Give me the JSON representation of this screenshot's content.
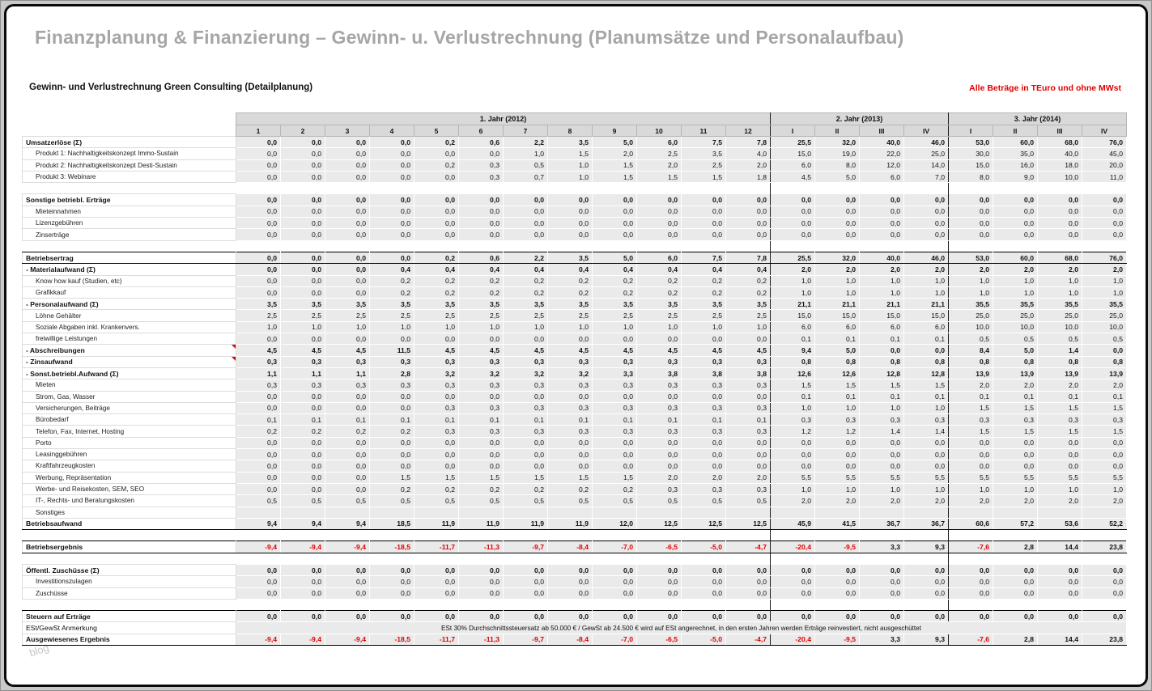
{
  "page": {
    "title": "Finanzplanung & Finanzierung – Gewinn- u. Verlustrechnung (Planumsätze und Personalaufbau)",
    "subtitle": "Gewinn- und Verlustrechnung Green Consulting (Detailplanung)",
    "note_right": "Alle Beträge in TEuro und ohne MWst",
    "watermark": "blog"
  },
  "colors": {
    "negative_red": "#e00000",
    "title_gray": "#a6a6a6",
    "header_bg": "#d9d9d9",
    "cell_bg": "#eaeaea",
    "frame_border": "#0a0a0a"
  },
  "table": {
    "year_groups": [
      {
        "label": "1. Jahr (2012)",
        "cols": [
          "1",
          "2",
          "3",
          "4",
          "5",
          "6",
          "7",
          "8",
          "9",
          "10",
          "11",
          "12"
        ]
      },
      {
        "label": "2. Jahr (2013)",
        "cols": [
          "I",
          "II",
          "III",
          "IV"
        ]
      },
      {
        "label": "3. Jahr (2014)",
        "cols": [
          "I",
          "II",
          "III",
          "IV"
        ]
      }
    ],
    "rows": [
      {
        "label": "Umsatzerlöse (Σ)",
        "bold": true,
        "values": [
          "0,0",
          "0,0",
          "0,0",
          "0,0",
          "0,2",
          "0,6",
          "2,2",
          "3,5",
          "5,0",
          "6,0",
          "7,5",
          "7,8",
          "25,5",
          "32,0",
          "40,0",
          "46,0",
          "53,0",
          "60,0",
          "68,0",
          "76,0"
        ]
      },
      {
        "label": "Produkt 1: Nachhaltigkeitskonzept Immo-Sustain",
        "indent": true,
        "values": [
          "0,0",
          "0,0",
          "0,0",
          "0,0",
          "0,0",
          "0,0",
          "1,0",
          "1,5",
          "2,0",
          "2,5",
          "3,5",
          "4,0",
          "15,0",
          "19,0",
          "22,0",
          "25,0",
          "30,0",
          "35,0",
          "40,0",
          "45,0"
        ]
      },
      {
        "label": "Produkt 2: Nachhaltigkeitskonzept Desti-Sustain",
        "indent": true,
        "values": [
          "0,0",
          "0,0",
          "0,0",
          "0,0",
          "0,2",
          "0,3",
          "0,5",
          "1,0",
          "1,5",
          "2,0",
          "2,5",
          "2,0",
          "6,0",
          "8,0",
          "12,0",
          "14,0",
          "15,0",
          "16,0",
          "18,0",
          "20,0"
        ]
      },
      {
        "label": "Produkt 3: Webinare",
        "indent": true,
        "values": [
          "0,0",
          "0,0",
          "0,0",
          "0,0",
          "0,0",
          "0,3",
          "0,7",
          "1,0",
          "1,5",
          "1,5",
          "1,5",
          "1,8",
          "4,5",
          "5,0",
          "6,0",
          "7,0",
          "8,0",
          "9,0",
          "10,0",
          "11,0"
        ]
      },
      {
        "type": "spacer"
      },
      {
        "label": "Sonstige betriebl. Erträge",
        "bold": true,
        "values": [
          "0,0",
          "0,0",
          "0,0",
          "0,0",
          "0,0",
          "0,0",
          "0,0",
          "0,0",
          "0,0",
          "0,0",
          "0,0",
          "0,0",
          "0,0",
          "0,0",
          "0,0",
          "0,0",
          "0,0",
          "0,0",
          "0,0",
          "0,0"
        ]
      },
      {
        "label": "Mieteinnahmen",
        "indent": true,
        "values": [
          "0,0",
          "0,0",
          "0,0",
          "0,0",
          "0,0",
          "0,0",
          "0,0",
          "0,0",
          "0,0",
          "0,0",
          "0,0",
          "0,0",
          "0,0",
          "0,0",
          "0,0",
          "0,0",
          "0,0",
          "0,0",
          "0,0",
          "0,0"
        ]
      },
      {
        "label": "Lizenzgebühren",
        "indent": true,
        "values": [
          "0,0",
          "0,0",
          "0,0",
          "0,0",
          "0,0",
          "0,0",
          "0,0",
          "0,0",
          "0,0",
          "0,0",
          "0,0",
          "0,0",
          "0,0",
          "0,0",
          "0,0",
          "0,0",
          "0,0",
          "0,0",
          "0,0",
          "0,0"
        ]
      },
      {
        "label": "Zinserträge",
        "indent": true,
        "values": [
          "0,0",
          "0,0",
          "0,0",
          "0,0",
          "0,0",
          "0,0",
          "0,0",
          "0,0",
          "0,0",
          "0,0",
          "0,0",
          "0,0",
          "0,0",
          "0,0",
          "0,0",
          "0,0",
          "0,0",
          "0,0",
          "0,0",
          "0,0"
        ]
      },
      {
        "type": "spacer"
      },
      {
        "label": "Betriebsertrag",
        "bold": true,
        "bt": true,
        "bb": true,
        "values": [
          "0,0",
          "0,0",
          "0,0",
          "0,0",
          "0,2",
          "0,6",
          "2,2",
          "3,5",
          "5,0",
          "6,0",
          "7,5",
          "7,8",
          "25,5",
          "32,0",
          "40,0",
          "46,0",
          "53,0",
          "60,0",
          "68,0",
          "76,0"
        ]
      },
      {
        "label": "- Materialaufwand (Σ)",
        "bold": true,
        "values": [
          "0,0",
          "0,0",
          "0,0",
          "0,4",
          "0,4",
          "0,4",
          "0,4",
          "0,4",
          "0,4",
          "0,4",
          "0,4",
          "0,4",
          "2,0",
          "2,0",
          "2,0",
          "2,0",
          "2,0",
          "2,0",
          "2,0",
          "2,0"
        ]
      },
      {
        "label": "Know how kauf (Studien, etc)",
        "indent": true,
        "values": [
          "0,0",
          "0,0",
          "0,0",
          "0,2",
          "0,2",
          "0,2",
          "0,2",
          "0,2",
          "0,2",
          "0,2",
          "0,2",
          "0,2",
          "1,0",
          "1,0",
          "1,0",
          "1,0",
          "1,0",
          "1,0",
          "1,0",
          "1,0"
        ]
      },
      {
        "label": "Grafikkauf",
        "indent": true,
        "values": [
          "0,0",
          "0,0",
          "0,0",
          "0,2",
          "0,2",
          "0,2",
          "0,2",
          "0,2",
          "0,2",
          "0,2",
          "0,2",
          "0,2",
          "1,0",
          "1,0",
          "1,0",
          "1,0",
          "1,0",
          "1,0",
          "1,0",
          "1,0"
        ]
      },
      {
        "label": "- Personalaufwand (Σ)",
        "bold": true,
        "values": [
          "3,5",
          "3,5",
          "3,5",
          "3,5",
          "3,5",
          "3,5",
          "3,5",
          "3,5",
          "3,5",
          "3,5",
          "3,5",
          "3,5",
          "21,1",
          "21,1",
          "21,1",
          "21,1",
          "35,5",
          "35,5",
          "35,5",
          "35,5"
        ]
      },
      {
        "label": "Löhne Gehälter",
        "indent": true,
        "values": [
          "2,5",
          "2,5",
          "2,5",
          "2,5",
          "2,5",
          "2,5",
          "2,5",
          "2,5",
          "2,5",
          "2,5",
          "2,5",
          "2,5",
          "15,0",
          "15,0",
          "15,0",
          "15,0",
          "25,0",
          "25,0",
          "25,0",
          "25,0"
        ]
      },
      {
        "label": "Soziale Abgaben inkl. Krankenvers.",
        "indent": true,
        "values": [
          "1,0",
          "1,0",
          "1,0",
          "1,0",
          "1,0",
          "1,0",
          "1,0",
          "1,0",
          "1,0",
          "1,0",
          "1,0",
          "1,0",
          "6,0",
          "6,0",
          "6,0",
          "6,0",
          "10,0",
          "10,0",
          "10,0",
          "10,0"
        ]
      },
      {
        "label": "freiwillige Leistungen",
        "indent": true,
        "values": [
          "0,0",
          "0,0",
          "0,0",
          "0,0",
          "0,0",
          "0,0",
          "0,0",
          "0,0",
          "0,0",
          "0,0",
          "0,0",
          "0,0",
          "0,1",
          "0,1",
          "0,1",
          "0,1",
          "0,5",
          "0,5",
          "0,5",
          "0,5"
        ]
      },
      {
        "label": "- Abschreibungen",
        "bold": true,
        "marker": true,
        "values": [
          "4,5",
          "4,5",
          "4,5",
          "11,5",
          "4,5",
          "4,5",
          "4,5",
          "4,5",
          "4,5",
          "4,5",
          "4,5",
          "4,5",
          "9,4",
          "5,0",
          "0,0",
          "0,0",
          "8,4",
          "5,0",
          "1,4",
          "0,0"
        ]
      },
      {
        "label": "- Zinsaufwand",
        "bold": true,
        "marker": true,
        "values": [
          "0,3",
          "0,3",
          "0,3",
          "0,3",
          "0,3",
          "0,3",
          "0,3",
          "0,3",
          "0,3",
          "0,3",
          "0,3",
          "0,3",
          "0,8",
          "0,8",
          "0,8",
          "0,8",
          "0,8",
          "0,8",
          "0,8",
          "0,8"
        ]
      },
      {
        "label": "- Sonst.betriebl.Aufwand (Σ)",
        "bold": true,
        "values": [
          "1,1",
          "1,1",
          "1,1",
          "2,8",
          "3,2",
          "3,2",
          "3,2",
          "3,2",
          "3,3",
          "3,8",
          "3,8",
          "3,8",
          "12,6",
          "12,6",
          "12,8",
          "12,8",
          "13,9",
          "13,9",
          "13,9",
          "13,9"
        ]
      },
      {
        "label": "Mieten",
        "indent": true,
        "values": [
          "0,3",
          "0,3",
          "0,3",
          "0,3",
          "0,3",
          "0,3",
          "0,3",
          "0,3",
          "0,3",
          "0,3",
          "0,3",
          "0,3",
          "1,5",
          "1,5",
          "1,5",
          "1,5",
          "2,0",
          "2,0",
          "2,0",
          "2,0"
        ]
      },
      {
        "label": "Strom, Gas, Wasser",
        "indent": true,
        "values": [
          "0,0",
          "0,0",
          "0,0",
          "0,0",
          "0,0",
          "0,0",
          "0,0",
          "0,0",
          "0,0",
          "0,0",
          "0,0",
          "0,0",
          "0,1",
          "0,1",
          "0,1",
          "0,1",
          "0,1",
          "0,1",
          "0,1",
          "0,1"
        ]
      },
      {
        "label": "Versicherungen, Beiträge",
        "indent": true,
        "values": [
          "0,0",
          "0,0",
          "0,0",
          "0,0",
          "0,3",
          "0,3",
          "0,3",
          "0,3",
          "0,3",
          "0,3",
          "0,3",
          "0,3",
          "1,0",
          "1,0",
          "1,0",
          "1,0",
          "1,5",
          "1,5",
          "1,5",
          "1,5"
        ]
      },
      {
        "label": "Bürobedarf",
        "indent": true,
        "values": [
          "0,1",
          "0,1",
          "0,1",
          "0,1",
          "0,1",
          "0,1",
          "0,1",
          "0,1",
          "0,1",
          "0,1",
          "0,1",
          "0,1",
          "0,3",
          "0,3",
          "0,3",
          "0,3",
          "0,3",
          "0,3",
          "0,3",
          "0,3"
        ]
      },
      {
        "label": "Telefon, Fax, Internet, Hosting",
        "indent": true,
        "values": [
          "0,2",
          "0,2",
          "0,2",
          "0,2",
          "0,3",
          "0,3",
          "0,3",
          "0,3",
          "0,3",
          "0,3",
          "0,3",
          "0,3",
          "1,2",
          "1,2",
          "1,4",
          "1,4",
          "1,5",
          "1,5",
          "1,5",
          "1,5"
        ]
      },
      {
        "label": "Porto",
        "indent": true,
        "values": [
          "0,0",
          "0,0",
          "0,0",
          "0,0",
          "0,0",
          "0,0",
          "0,0",
          "0,0",
          "0,0",
          "0,0",
          "0,0",
          "0,0",
          "0,0",
          "0,0",
          "0,0",
          "0,0",
          "0,0",
          "0,0",
          "0,0",
          "0,0"
        ]
      },
      {
        "label": "Leasinggebühren",
        "indent": true,
        "values": [
          "0,0",
          "0,0",
          "0,0",
          "0,0",
          "0,0",
          "0,0",
          "0,0",
          "0,0",
          "0,0",
          "0,0",
          "0,0",
          "0,0",
          "0,0",
          "0,0",
          "0,0",
          "0,0",
          "0,0",
          "0,0",
          "0,0",
          "0,0"
        ]
      },
      {
        "label": "Kraftfahrzeugkosten",
        "indent": true,
        "values": [
          "0,0",
          "0,0",
          "0,0",
          "0,0",
          "0,0",
          "0,0",
          "0,0",
          "0,0",
          "0,0",
          "0,0",
          "0,0",
          "0,0",
          "0,0",
          "0,0",
          "0,0",
          "0,0",
          "0,0",
          "0,0",
          "0,0",
          "0,0"
        ]
      },
      {
        "label": "Werbung, Repräsentation",
        "indent": true,
        "values": [
          "0,0",
          "0,0",
          "0,0",
          "1,5",
          "1,5",
          "1,5",
          "1,5",
          "1,5",
          "1,5",
          "2,0",
          "2,0",
          "2,0",
          "5,5",
          "5,5",
          "5,5",
          "5,5",
          "5,5",
          "5,5",
          "5,5",
          "5,5"
        ]
      },
      {
        "label": "Werbe- und Reisekosten, SEM, SEO",
        "indent": true,
        "values": [
          "0,0",
          "0,0",
          "0,0",
          "0,2",
          "0,2",
          "0,2",
          "0,2",
          "0,2",
          "0,2",
          "0,3",
          "0,3",
          "0,3",
          "1,0",
          "1,0",
          "1,0",
          "1,0",
          "1,0",
          "1,0",
          "1,0",
          "1,0"
        ]
      },
      {
        "label": "IT-, Rechts- und Beratungskosten",
        "indent": true,
        "values": [
          "0,5",
          "0,5",
          "0,5",
          "0,5",
          "0,5",
          "0,5",
          "0,5",
          "0,5",
          "0,5",
          "0,5",
          "0,5",
          "0,5",
          "2,0",
          "2,0",
          "2,0",
          "2,0",
          "2,0",
          "2,0",
          "2,0",
          "2,0"
        ]
      },
      {
        "label": "Sonstiges",
        "indent": true,
        "values": [
          "",
          "",
          "",
          "",
          "",
          "",
          "",
          "",
          "",
          "",
          "",
          "",
          "",
          "",
          "",
          "",
          "",
          "",
          "",
          ""
        ]
      },
      {
        "label": "Betriebsaufwand",
        "bold": true,
        "bt": true,
        "bb": true,
        "values": [
          "9,4",
          "9,4",
          "9,4",
          "18,5",
          "11,9",
          "11,9",
          "11,9",
          "11,9",
          "12,0",
          "12,5",
          "12,5",
          "12,5",
          "45,9",
          "41,5",
          "36,7",
          "36,7",
          "60,6",
          "57,2",
          "53,6",
          "52,2"
        ]
      },
      {
        "type": "spacer"
      },
      {
        "label": "Betriebsergebnis",
        "bold": true,
        "bt": true,
        "bb": true,
        "values": [
          "-9,4",
          "-9,4",
          "-9,4",
          "-18,5",
          "-11,7",
          "-11,3",
          "-9,7",
          "-8,4",
          "-7,0",
          "-6,5",
          "-5,0",
          "-4,7",
          "-20,4",
          "-9,5",
          "3,3",
          "9,3",
          "-7,6",
          "2,8",
          "14,4",
          "23,8"
        ]
      },
      {
        "type": "spacer"
      },
      {
        "label": "Öffentl. Zuschüsse (Σ)",
        "bold": true,
        "values": [
          "0,0",
          "0,0",
          "0,0",
          "0,0",
          "0,0",
          "0,0",
          "0,0",
          "0,0",
          "0,0",
          "0,0",
          "0,0",
          "0,0",
          "0,0",
          "0,0",
          "0,0",
          "0,0",
          "0,0",
          "0,0",
          "0,0",
          "0,0"
        ]
      },
      {
        "label": "Investitionszulagen",
        "indent": true,
        "values": [
          "0,0",
          "0,0",
          "0,0",
          "0,0",
          "0,0",
          "0,0",
          "0,0",
          "0,0",
          "0,0",
          "0,0",
          "0,0",
          "0,0",
          "0,0",
          "0,0",
          "0,0",
          "0,0",
          "0,0",
          "0,0",
          "0,0",
          "0,0"
        ]
      },
      {
        "label": "Zuschüsse",
        "indent": true,
        "values": [
          "0,0",
          "0,0",
          "0,0",
          "0,0",
          "0,0",
          "0,0",
          "0,0",
          "0,0",
          "0,0",
          "0,0",
          "0,0",
          "0,0",
          "0,0",
          "0,0",
          "0,0",
          "0,0",
          "0,0",
          "0,0",
          "0,0",
          "0,0"
        ]
      },
      {
        "type": "spacer"
      },
      {
        "label": "Steuern auf Erträge",
        "bold": true,
        "bt": true,
        "values": [
          "0,0",
          "0,0",
          "0,0",
          "0,0",
          "0,0",
          "0,0",
          "0,0",
          "0,0",
          "0,0",
          "0,0",
          "0,0",
          "0,0",
          "0,0",
          "0,0",
          "0,0",
          "0,0",
          "0,0",
          "0,0",
          "0,0",
          "0,0"
        ]
      },
      {
        "type": "note",
        "label": "ESt/GewSt Anmerkung",
        "note": "ESt 30%  Durchschnittssteuersatz ab  50.000 € / GewSt ab 24.500 € wird auf ESt angerechnet, in den ersten Jahren werden Erträge reinvestiert, nicht ausgeschüttet"
      },
      {
        "label": "Ausgewiesenes Ergebnis",
        "bold": true,
        "bt": true,
        "bb": true,
        "values": [
          "-9,4",
          "-9,4",
          "-9,4",
          "-18,5",
          "-11,7",
          "-11,3",
          "-9,7",
          "-8,4",
          "-7,0",
          "-6,5",
          "-5,0",
          "-4,7",
          "-20,4",
          "-9,5",
          "3,3",
          "9,3",
          "-7,6",
          "2,8",
          "14,4",
          "23,8"
        ]
      }
    ]
  }
}
